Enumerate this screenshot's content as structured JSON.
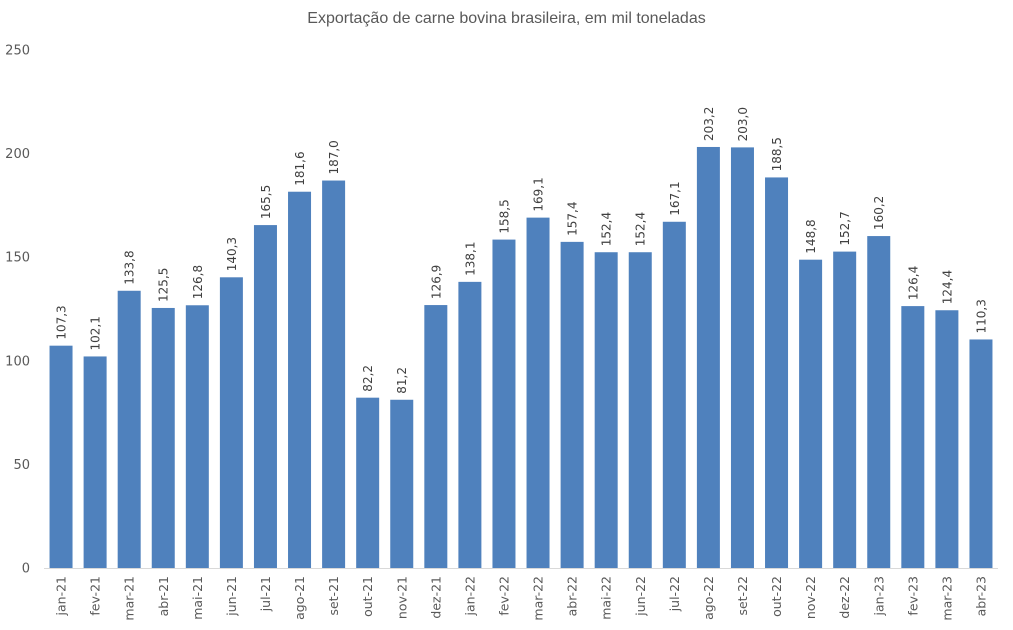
{
  "chart_data": {
    "type": "bar",
    "title": "Exportação de carne bovina brasileira, em mil toneladas",
    "xlabel": "",
    "ylabel": "",
    "ylim": [
      0,
      250
    ],
    "yticks": [
      "0",
      "50",
      "100",
      "150",
      "200",
      "250"
    ],
    "grid": false,
    "legend": "none",
    "bar_color": "#4F81BD",
    "categories": [
      "jan-21",
      "fev-21",
      "mar-21",
      "abr-21",
      "mai-21",
      "jun-21",
      "jul-21",
      "ago-21",
      "set-21",
      "out-21",
      "nov-21",
      "dez-21",
      "jan-22",
      "fev-22",
      "mar-22",
      "abr-22",
      "mai-22",
      "jun-22",
      "jul-22",
      "ago-22",
      "set-22",
      "out-22",
      "nov-22",
      "dez-22",
      "jan-23",
      "fev-23",
      "mar-23",
      "abr-23"
    ],
    "values": [
      107.3,
      102.1,
      133.8,
      125.5,
      126.8,
      140.3,
      165.5,
      181.6,
      187.0,
      82.2,
      81.2,
      126.9,
      138.1,
      158.5,
      169.1,
      157.4,
      152.4,
      152.4,
      167.1,
      203.2,
      203.0,
      188.5,
      148.8,
      152.7,
      160.2,
      126.4,
      124.4,
      110.3
    ],
    "data_labels": [
      "107,3",
      "102,1",
      "133,8",
      "125,5",
      "126,8",
      "140,3",
      "165,5",
      "181,6",
      "187,0",
      "82,2",
      "81,2",
      "126,9",
      "138,1",
      "158,5",
      "169,1",
      "157,4",
      "152,4",
      "152,4",
      "167,1",
      "203,2",
      "203,0",
      "188,5",
      "148,8",
      "152,7",
      "160,2",
      "126,4",
      "124,4",
      "110,3"
    ]
  }
}
